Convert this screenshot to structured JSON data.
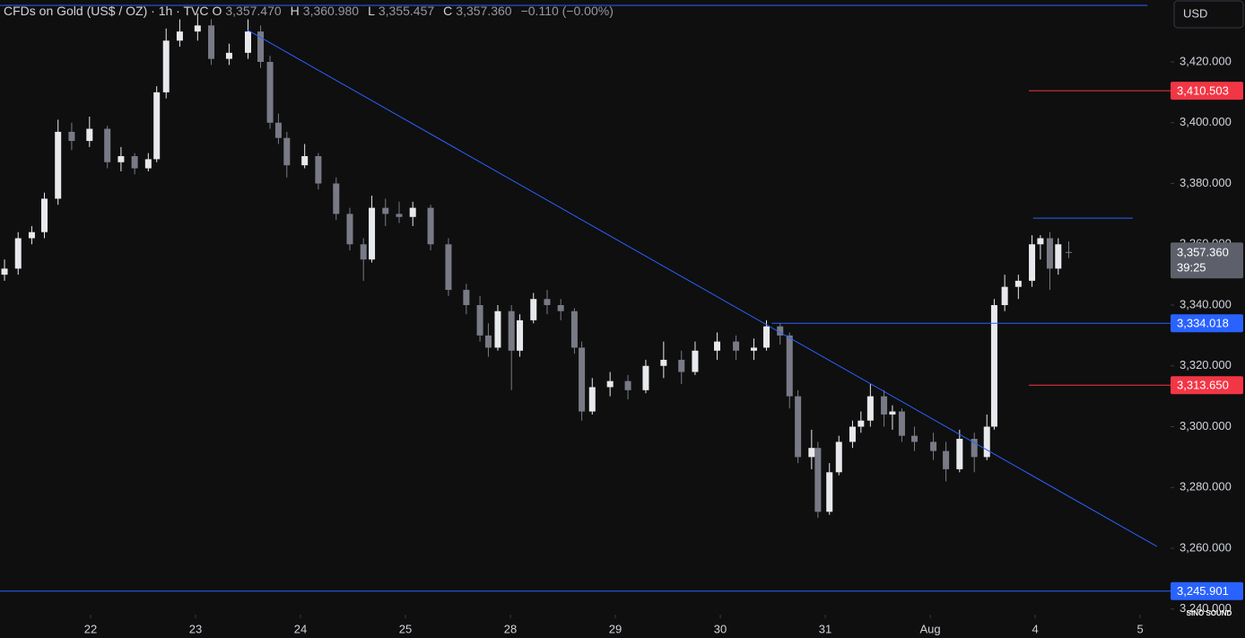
{
  "chart_data": {
    "type": "candlestick",
    "header": {
      "symbol": "CFDs on Gold (US$ / OZ) · 1h · TVC",
      "ohlc": [
        {
          "key": "O",
          "value": 3357.47,
          "label": "3,357.470"
        },
        {
          "key": "H",
          "value": 3360.98,
          "label": "3,360.980"
        },
        {
          "key": "L",
          "value": 3355.457,
          "label": "3,355.457"
        },
        {
          "key": "C",
          "value": 3357.36,
          "label": "3,357.360"
        }
      ],
      "change": "−0.110 (−0.00%)"
    },
    "currency": "USD",
    "watermark": "SINO SOUND",
    "up_color": "#e8e9ec",
    "down_color": "#787b86",
    "x": [
      -0.82,
      -0.69,
      -0.56,
      -0.44,
      -0.31,
      -0.18,
      -0.01,
      0.16,
      0.29,
      0.42,
      0.55,
      0.63,
      0.72,
      0.85,
      1.02,
      1.15,
      1.32,
      1.5,
      1.62,
      1.71,
      1.79,
      1.87,
      2.04,
      2.17,
      2.34,
      2.47,
      2.6,
      2.68,
      2.81,
      2.94,
      3.07,
      3.24,
      3.41,
      3.58,
      3.71,
      3.79,
      3.88,
      4.01,
      4.09,
      4.22,
      4.35,
      4.48,
      4.61,
      4.68,
      4.78,
      4.95,
      5.12,
      5.29,
      5.46,
      5.63,
      5.76,
      5.97,
      6.15,
      6.32,
      6.44,
      6.57,
      6.66,
      6.74,
      6.87,
      6.93,
      7.04,
      7.13,
      7.26,
      7.34,
      7.43,
      7.56,
      7.64,
      7.73,
      7.85,
      8.03,
      8.15,
      8.28,
      8.42,
      8.54,
      8.61,
      8.71,
      8.84,
      8.97,
      9.05,
      9.14,
      9.22,
      9.32
    ],
    "open": [
      3350,
      3352,
      3362,
      3364,
      3375,
      3397,
      3394,
      3398,
      3387,
      3389,
      3385,
      3388,
      3410,
      3427,
      3430,
      3432,
      3421,
      3423,
      3430,
      3420,
      3400,
      3395,
      3386,
      3389,
      3380,
      3370,
      3360,
      3355,
      3372,
      3370,
      3369,
      3372,
      3360,
      3345,
      3340,
      3330,
      3326,
      3338,
      3325,
      3335,
      3342,
      3340,
      3338,
      3326,
      3305,
      3313,
      3315,
      3312,
      3320,
      3322,
      3318,
      3325,
      3328,
      3325,
      3326,
      3333,
      3330,
      3310,
      3290,
      3293,
      3272,
      3285,
      3295,
      3300,
      3302,
      3310,
      3304,
      3305,
      3297,
      3295,
      3292,
      3286,
      3296,
      3290,
      3300,
      3340,
      3346,
      3348,
      3360,
      3362,
      3352,
      3357.47
    ],
    "high": [
      3355,
      3364,
      3366,
      3377,
      3401,
      3400,
      3402,
      3399,
      3392,
      3390,
      3390,
      3412,
      3431,
      3434,
      3436,
      3434,
      3426,
      3434,
      3432,
      3422,
      3403,
      3397,
      3393,
      3390,
      3382,
      3372,
      3362,
      3376,
      3375,
      3374,
      3374,
      3373,
      3362,
      3347,
      3343,
      3334,
      3340,
      3340,
      3337,
      3344,
      3345,
      3342,
      3339,
      3328,
      3316,
      3318,
      3317,
      3322,
      3328,
      3325,
      3328,
      3331,
      3330,
      3329,
      3335,
      3334,
      3331,
      3312,
      3299,
      3295,
      3288,
      3297,
      3302,
      3305,
      3314,
      3312,
      3307,
      3306,
      3300,
      3298,
      3295,
      3299,
      3298,
      3304,
      3342,
      3350,
      3350,
      3363,
      3363,
      3364,
      3362,
      3360.98
    ],
    "low": [
      3348,
      3350,
      3360,
      3362,
      3373,
      3391,
      3392,
      3385,
      3384,
      3383,
      3384,
      3387,
      3408,
      3425,
      3427,
      3419,
      3419,
      3421,
      3418,
      3398,
      3393,
      3382,
      3385,
      3378,
      3368,
      3358,
      3348,
      3354,
      3366,
      3367,
      3366,
      3358,
      3343,
      3337,
      3328,
      3323,
      3325,
      3312,
      3323,
      3334,
      3337,
      3335,
      3324,
      3302,
      3304,
      3310,
      3309,
      3311,
      3316,
      3314,
      3317,
      3322,
      3322,
      3322,
      3325,
      3327,
      3306,
      3288,
      3286,
      3270,
      3271,
      3284,
      3293,
      3298,
      3300,
      3300,
      3299,
      3295,
      3292,
      3289,
      3282,
      3285,
      3285,
      3289,
      3299,
      3338,
      3342,
      3346,
      3355,
      3345,
      3350,
      3355.457
    ],
    "close": [
      3352,
      3362,
      3364,
      3375,
      3397,
      3394,
      3398,
      3387,
      3389,
      3385,
      3388,
      3410,
      3427,
      3430,
      3432,
      3421,
      3423,
      3430,
      3420,
      3400,
      3395,
      3386,
      3389,
      3380,
      3370,
      3360,
      3355,
      3372,
      3370,
      3369,
      3372,
      3360,
      3345,
      3340,
      3330,
      3326,
      3338,
      3325,
      3335,
      3342,
      3340,
      3338,
      3326,
      3305,
      3313,
      3315,
      3312,
      3320,
      3322,
      3318,
      3325,
      3328,
      3325,
      3326,
      3333,
      3330,
      3310,
      3290,
      3293,
      3272,
      3285,
      3295,
      3300,
      3302,
      3310,
      3304,
      3305,
      3297,
      3295,
      3292,
      3286,
      3296,
      3290,
      3300,
      3340,
      3346,
      3348,
      3360,
      3362,
      3352,
      3360,
      3357.36
    ],
    "xlim": [
      -0.863,
      10.29
    ],
    "ylim": [
      3238.15,
      3440.37
    ],
    "xticks": [
      {
        "value": 0,
        "label": "22"
      },
      {
        "value": 1,
        "label": "23"
      },
      {
        "value": 2,
        "label": "24"
      },
      {
        "value": 3,
        "label": "25"
      },
      {
        "value": 4,
        "label": "28"
      },
      {
        "value": 5,
        "label": "29"
      },
      {
        "value": 6,
        "label": "30"
      },
      {
        "value": 7,
        "label": "31"
      },
      {
        "value": 8,
        "label": "Aug"
      },
      {
        "value": 9,
        "label": "4"
      },
      {
        "value": 10,
        "label": "5"
      }
    ],
    "yticks": [
      {
        "value": 3240,
        "label": "3,240.000"
      },
      {
        "value": 3260,
        "label": "3,260.000"
      },
      {
        "value": 3280,
        "label": "3,280.000"
      },
      {
        "value": 3300,
        "label": "3,300.000"
      },
      {
        "value": 3320,
        "label": "3,320.000"
      },
      {
        "value": 3340,
        "label": "3,340.000"
      },
      {
        "value": 3360,
        "label": "3,360.000"
      },
      {
        "value": 3380,
        "label": "3,380.000"
      },
      {
        "value": 3400,
        "label": "3,400.000"
      },
      {
        "value": 3420,
        "label": "3,420.000"
      }
    ],
    "levels": [
      {
        "value": 3410.503,
        "label": "3,410.503",
        "color": "#f23645",
        "from": 8.94
      },
      {
        "value": 3334.018,
        "label": "3,334.018",
        "color": "#2962ff",
        "from": 6.49
      },
      {
        "value": 3313.65,
        "label": "3,313.650",
        "color": "#f23645",
        "from": 8.94
      },
      {
        "value": 3245.901,
        "label": "3,245.901",
        "color": "#2962ff",
        "from": -0.863
      }
    ],
    "segments": [
      {
        "x": [
          -0.863,
          10.07
        ],
        "y": [
          3438.6,
          3438.6
        ],
        "color": "#2962ff"
      },
      {
        "x": [
          8.98,
          9.93
        ],
        "y": [
          3368.6,
          3368.6
        ],
        "color": "#2962ff"
      },
      {
        "x": [
          1.49,
          10.16
        ],
        "y": [
          3430.6,
          3260.6
        ],
        "color": "#2962ff"
      }
    ],
    "last": {
      "value": 3357.36,
      "label": "3,357.360",
      "countdown": "39:25",
      "color": "#5d606b"
    }
  }
}
